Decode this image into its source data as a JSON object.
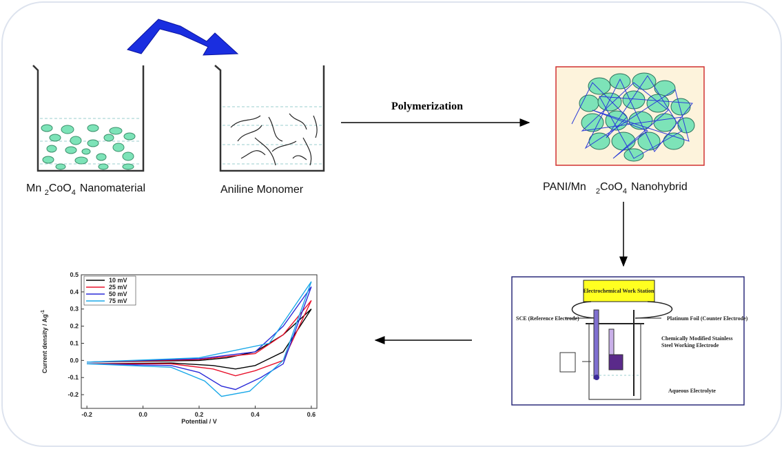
{
  "nanomaterial_label": {
    "text1": "Mn",
    "sub1": "2",
    "text2": "CoO",
    "sub2": "4",
    "text3": "Nanomaterial"
  },
  "monomer_label": "Aniline Monomer",
  "process_label": "Polymerization",
  "hybrid_label": {
    "text1": "PANI/Mn",
    "sub1": "2",
    "text2": "CoO",
    "sub2": "4",
    "text3": "Nanohybrid"
  },
  "cell": {
    "workstation": "Electrochemical Work Station",
    "reference": "SCE (Reference Electrode)",
    "counter": "Platinum Foil (Counter Electrode)",
    "working1": "Chemically Modified Stainless",
    "working2": "Steel Working Electrode",
    "electrolyte": "Aqueous Electrolyte"
  },
  "chart_data": {
    "type": "line",
    "xlabel": "Potential / V",
    "ylabel": "Current density / Ag",
    "ylabel_sup": "-1",
    "xlim": [
      -0.22,
      0.62
    ],
    "ylim": [
      -0.28,
      0.5
    ],
    "xticks": [
      -0.2,
      {
        "value": 0,
        "label": "0.0"
      },
      0.2,
      0.4,
      0.6
    ],
    "yticks": [
      -0.2,
      -0.1,
      {
        "value": 0,
        "label": "0.0"
      },
      0.1,
      0.2,
      0.3,
      0.4,
      0.5
    ],
    "series": [
      {
        "name": "10 mV",
        "color": "#000000",
        "x": [
          -0.2,
          0,
          0.2,
          0.3,
          0.4,
          0.5,
          0.6,
          0.5,
          0.4,
          0.33,
          0.25,
          0.1,
          -0.2
        ],
        "values": [
          -0.01,
          -0.005,
          0,
          0.015,
          0.05,
          0.15,
          0.3,
          0.05,
          -0.03,
          -0.05,
          -0.03,
          -0.015,
          -0.02
        ]
      },
      {
        "name": "25 mV",
        "color": "#e8102a",
        "x": [
          -0.2,
          0.2,
          0.4,
          0.5,
          0.6,
          0.5,
          0.4,
          0.33,
          0.25,
          0.1,
          -0.2
        ],
        "values": [
          -0.01,
          0.005,
          0.04,
          0.15,
          0.35,
          0,
          -0.06,
          -0.09,
          -0.05,
          -0.02,
          -0.02
        ]
      },
      {
        "name": "50 mV",
        "color": "#2a2ad8",
        "x": [
          -0.2,
          0.2,
          0.4,
          0.5,
          0.6,
          0.5,
          0.42,
          0.33,
          0.28,
          0.2,
          0.1,
          -0.2
        ],
        "values": [
          -0.01,
          0.01,
          0.05,
          0.2,
          0.43,
          -0.02,
          -0.1,
          -0.17,
          -0.15,
          -0.07,
          -0.03,
          -0.02
        ]
      },
      {
        "name": "75 mV",
        "color": "#1aa8e8",
        "x": [
          -0.2,
          0.2,
          0.45,
          0.6,
          0.5,
          0.38,
          0.28,
          0.22,
          0.1,
          -0.2
        ],
        "values": [
          -0.01,
          0.015,
          0.1,
          0.46,
          0,
          -0.18,
          -0.21,
          -0.12,
          -0.04,
          -0.02
        ]
      }
    ]
  }
}
